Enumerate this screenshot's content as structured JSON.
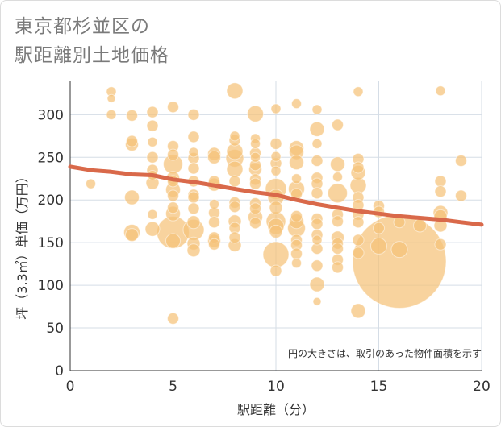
{
  "title_lines": [
    "東京都杉並区の",
    "駅距離別土地価格"
  ],
  "chart_data": {
    "type": "scatter",
    "title": "東京都杉並区の駅距離別土地価格",
    "xlabel": "駅距離（分）",
    "ylabel": "坪（3.3㎡）単価（万円）",
    "xlim": [
      0,
      20
    ],
    "ylim": [
      0,
      340
    ],
    "xticks": [
      0,
      5,
      10,
      15,
      20
    ],
    "yticks": [
      0,
      50,
      100,
      150,
      200,
      250,
      300
    ],
    "grid": true,
    "note": "円の大きさは、取引のあった物件面積を示す",
    "bubble_color": "#f5c278",
    "trend_color": "#d9694a",
    "points": [
      {
        "x": 1,
        "y": 219,
        "s": 6
      },
      {
        "x": 2,
        "y": 327,
        "s": 6
      },
      {
        "x": 2,
        "y": 319,
        "s": 5
      },
      {
        "x": 2,
        "y": 300,
        "s": 6
      },
      {
        "x": 3,
        "y": 299,
        "s": 7
      },
      {
        "x": 3,
        "y": 269,
        "s": 7
      },
      {
        "x": 3,
        "y": 265,
        "s": 8
      },
      {
        "x": 3,
        "y": 203,
        "s": 9
      },
      {
        "x": 3,
        "y": 162,
        "s": 10
      },
      {
        "x": 3,
        "y": 159,
        "s": 8
      },
      {
        "x": 4,
        "y": 303,
        "s": 7
      },
      {
        "x": 4,
        "y": 287,
        "s": 7
      },
      {
        "x": 4,
        "y": 268,
        "s": 6
      },
      {
        "x": 4,
        "y": 250,
        "s": 7
      },
      {
        "x": 4,
        "y": 235,
        "s": 7
      },
      {
        "x": 4,
        "y": 229,
        "s": 6
      },
      {
        "x": 4,
        "y": 220,
        "s": 8
      },
      {
        "x": 4,
        "y": 183,
        "s": 6
      },
      {
        "x": 4,
        "y": 166,
        "s": 9
      },
      {
        "x": 5,
        "y": 309,
        "s": 7
      },
      {
        "x": 5,
        "y": 263,
        "s": 7
      },
      {
        "x": 5,
        "y": 253,
        "s": 7
      },
      {
        "x": 5,
        "y": 242,
        "s": 12
      },
      {
        "x": 5,
        "y": 226,
        "s": 8
      },
      {
        "x": 5,
        "y": 222,
        "s": 7
      },
      {
        "x": 5,
        "y": 212,
        "s": 9
      },
      {
        "x": 5,
        "y": 205,
        "s": 7
      },
      {
        "x": 5,
        "y": 191,
        "s": 7
      },
      {
        "x": 5,
        "y": 184,
        "s": 9
      },
      {
        "x": 5,
        "y": 162,
        "s": 20
      },
      {
        "x": 5,
        "y": 152,
        "s": 9
      },
      {
        "x": 5,
        "y": 61,
        "s": 7
      },
      {
        "x": 6,
        "y": 300,
        "s": 7
      },
      {
        "x": 6,
        "y": 274,
        "s": 7
      },
      {
        "x": 6,
        "y": 256,
        "s": 6
      },
      {
        "x": 6,
        "y": 249,
        "s": 7
      },
      {
        "x": 6,
        "y": 237,
        "s": 7
      },
      {
        "x": 6,
        "y": 222,
        "s": 7
      },
      {
        "x": 6,
        "y": 206,
        "s": 7
      },
      {
        "x": 6,
        "y": 203,
        "s": 7
      },
      {
        "x": 6,
        "y": 190,
        "s": 7
      },
      {
        "x": 6,
        "y": 174,
        "s": 8
      },
      {
        "x": 6,
        "y": 165,
        "s": 13
      },
      {
        "x": 6,
        "y": 149,
        "s": 8
      },
      {
        "x": 6,
        "y": 141,
        "s": 8
      },
      {
        "x": 7,
        "y": 254,
        "s": 8
      },
      {
        "x": 7,
        "y": 250,
        "s": 8
      },
      {
        "x": 7,
        "y": 222,
        "s": 7
      },
      {
        "x": 7,
        "y": 218,
        "s": 8
      },
      {
        "x": 7,
        "y": 195,
        "s": 6
      },
      {
        "x": 7,
        "y": 185,
        "s": 7
      },
      {
        "x": 7,
        "y": 174,
        "s": 7
      },
      {
        "x": 7,
        "y": 156,
        "s": 7
      },
      {
        "x": 7,
        "y": 152,
        "s": 8
      },
      {
        "x": 7,
        "y": 148,
        "s": 7
      },
      {
        "x": 8,
        "y": 328,
        "s": 10
      },
      {
        "x": 8,
        "y": 275,
        "s": 6
      },
      {
        "x": 8,
        "y": 270,
        "s": 7
      },
      {
        "x": 8,
        "y": 257,
        "s": 10
      },
      {
        "x": 8,
        "y": 249,
        "s": 11
      },
      {
        "x": 8,
        "y": 236,
        "s": 10
      },
      {
        "x": 8,
        "y": 222,
        "s": 7
      },
      {
        "x": 8,
        "y": 197,
        "s": 7
      },
      {
        "x": 8,
        "y": 192,
        "s": 7
      },
      {
        "x": 8,
        "y": 175,
        "s": 8
      },
      {
        "x": 8,
        "y": 167,
        "s": 7
      },
      {
        "x": 8,
        "y": 156,
        "s": 7
      },
      {
        "x": 8,
        "y": 147,
        "s": 8
      },
      {
        "x": 9,
        "y": 301,
        "s": 10
      },
      {
        "x": 9,
        "y": 272,
        "s": 6
      },
      {
        "x": 9,
        "y": 266,
        "s": 6
      },
      {
        "x": 9,
        "y": 255,
        "s": 7
      },
      {
        "x": 9,
        "y": 250,
        "s": 6
      },
      {
        "x": 9,
        "y": 241,
        "s": 7
      },
      {
        "x": 9,
        "y": 236,
        "s": 8
      },
      {
        "x": 9,
        "y": 224,
        "s": 7
      },
      {
        "x": 9,
        "y": 219,
        "s": 7
      },
      {
        "x": 9,
        "y": 196,
        "s": 7
      },
      {
        "x": 9,
        "y": 190,
        "s": 7
      },
      {
        "x": 9,
        "y": 180,
        "s": 9
      },
      {
        "x": 9,
        "y": 173,
        "s": 7
      },
      {
        "x": 10,
        "y": 307,
        "s": 6
      },
      {
        "x": 10,
        "y": 266,
        "s": 7
      },
      {
        "x": 10,
        "y": 251,
        "s": 6
      },
      {
        "x": 10,
        "y": 243,
        "s": 7
      },
      {
        "x": 10,
        "y": 234,
        "s": 6
      },
      {
        "x": 10,
        "y": 213,
        "s": 13
      },
      {
        "x": 10,
        "y": 203,
        "s": 10
      },
      {
        "x": 10,
        "y": 191,
        "s": 8
      },
      {
        "x": 10,
        "y": 175,
        "s": 12
      },
      {
        "x": 10,
        "y": 169,
        "s": 10
      },
      {
        "x": 10,
        "y": 163,
        "s": 8
      },
      {
        "x": 10,
        "y": 136,
        "s": 16
      },
      {
        "x": 10,
        "y": 117,
        "s": 7
      },
      {
        "x": 11,
        "y": 313,
        "s": 6
      },
      {
        "x": 11,
        "y": 261,
        "s": 9
      },
      {
        "x": 11,
        "y": 256,
        "s": 9
      },
      {
        "x": 11,
        "y": 244,
        "s": 9
      },
      {
        "x": 11,
        "y": 225,
        "s": 6
      },
      {
        "x": 11,
        "y": 213,
        "s": 10
      },
      {
        "x": 11,
        "y": 207,
        "s": 7
      },
      {
        "x": 11,
        "y": 181,
        "s": 7
      },
      {
        "x": 11,
        "y": 175,
        "s": 9
      },
      {
        "x": 11,
        "y": 167,
        "s": 11
      },
      {
        "x": 11,
        "y": 153,
        "s": 7
      },
      {
        "x": 11,
        "y": 147,
        "s": 7
      },
      {
        "x": 11,
        "y": 137,
        "s": 7
      },
      {
        "x": 11,
        "y": 126,
        "s": 6
      },
      {
        "x": 12,
        "y": 306,
        "s": 6
      },
      {
        "x": 12,
        "y": 283,
        "s": 9
      },
      {
        "x": 12,
        "y": 266,
        "s": 6
      },
      {
        "x": 12,
        "y": 246,
        "s": 7
      },
      {
        "x": 12,
        "y": 226,
        "s": 7
      },
      {
        "x": 12,
        "y": 219,
        "s": 7
      },
      {
        "x": 12,
        "y": 208,
        "s": 7
      },
      {
        "x": 12,
        "y": 178,
        "s": 7
      },
      {
        "x": 12,
        "y": 172,
        "s": 7
      },
      {
        "x": 12,
        "y": 159,
        "s": 7
      },
      {
        "x": 12,
        "y": 153,
        "s": 6
      },
      {
        "x": 12,
        "y": 143,
        "s": 7
      },
      {
        "x": 12,
        "y": 123,
        "s": 7
      },
      {
        "x": 12,
        "y": 101,
        "s": 9
      },
      {
        "x": 12,
        "y": 81,
        "s": 5
      },
      {
        "x": 13,
        "y": 288,
        "s": 7
      },
      {
        "x": 13,
        "y": 242,
        "s": 9
      },
      {
        "x": 13,
        "y": 227,
        "s": 6
      },
      {
        "x": 13,
        "y": 208,
        "s": 12
      },
      {
        "x": 13,
        "y": 183,
        "s": 7
      },
      {
        "x": 13,
        "y": 175,
        "s": 7
      },
      {
        "x": 13,
        "y": 156,
        "s": 8
      },
      {
        "x": 13,
        "y": 149,
        "s": 7
      },
      {
        "x": 13,
        "y": 143,
        "s": 7
      },
      {
        "x": 13,
        "y": 130,
        "s": 7
      },
      {
        "x": 13,
        "y": 121,
        "s": 7
      },
      {
        "x": 14,
        "y": 327,
        "s": 6
      },
      {
        "x": 14,
        "y": 248,
        "s": 7
      },
      {
        "x": 14,
        "y": 238,
        "s": 7
      },
      {
        "x": 14,
        "y": 232,
        "s": 9
      },
      {
        "x": 14,
        "y": 217,
        "s": 10
      },
      {
        "x": 14,
        "y": 203,
        "s": 7
      },
      {
        "x": 14,
        "y": 194,
        "s": 7
      },
      {
        "x": 14,
        "y": 183,
        "s": 7
      },
      {
        "x": 14,
        "y": 174,
        "s": 7
      },
      {
        "x": 14,
        "y": 153,
        "s": 7
      },
      {
        "x": 14,
        "y": 138,
        "s": 7
      },
      {
        "x": 14,
        "y": 70,
        "s": 9
      },
      {
        "x": 15,
        "y": 193,
        "s": 7
      },
      {
        "x": 15,
        "y": 186,
        "s": 7
      },
      {
        "x": 15,
        "y": 167,
        "s": 7
      },
      {
        "x": 15,
        "y": 146,
        "s": 10
      },
      {
        "x": 16,
        "y": 174,
        "s": 7
      },
      {
        "x": 16,
        "y": 142,
        "s": 10
      },
      {
        "x": 16,
        "y": 128,
        "s": 58
      },
      {
        "x": 17,
        "y": 170,
        "s": 8
      },
      {
        "x": 18,
        "y": 328,
        "s": 6
      },
      {
        "x": 18,
        "y": 222,
        "s": 7
      },
      {
        "x": 18,
        "y": 210,
        "s": 7
      },
      {
        "x": 18,
        "y": 185,
        "s": 9
      },
      {
        "x": 18,
        "y": 181,
        "s": 8
      },
      {
        "x": 18,
        "y": 170,
        "s": 8
      },
      {
        "x": 18,
        "y": 148,
        "s": 7
      },
      {
        "x": 19,
        "y": 246,
        "s": 7
      },
      {
        "x": 19,
        "y": 205,
        "s": 7
      }
    ],
    "trend": [
      {
        "x": 0,
        "y": 239
      },
      {
        "x": 1,
        "y": 235
      },
      {
        "x": 2,
        "y": 233
      },
      {
        "x": 3,
        "y": 230
      },
      {
        "x": 4,
        "y": 229
      },
      {
        "x": 5,
        "y": 224
      },
      {
        "x": 6,
        "y": 221
      },
      {
        "x": 7,
        "y": 217
      },
      {
        "x": 8,
        "y": 213
      },
      {
        "x": 9,
        "y": 209
      },
      {
        "x": 10,
        "y": 206
      },
      {
        "x": 11,
        "y": 200
      },
      {
        "x": 12,
        "y": 195
      },
      {
        "x": 13,
        "y": 191
      },
      {
        "x": 14,
        "y": 187
      },
      {
        "x": 15,
        "y": 184
      },
      {
        "x": 16,
        "y": 181
      },
      {
        "x": 17,
        "y": 179
      },
      {
        "x": 18,
        "y": 177
      },
      {
        "x": 19,
        "y": 174
      },
      {
        "x": 20,
        "y": 171
      }
    ]
  }
}
